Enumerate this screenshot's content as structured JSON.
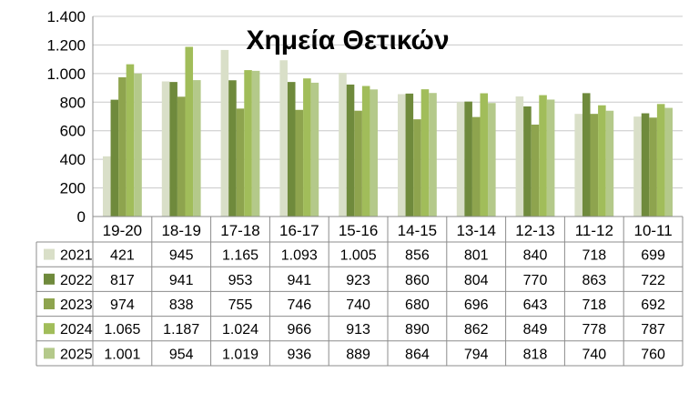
{
  "colors": {
    "2021": "#d9dfc8",
    "2022": "#6f8a3c",
    "2023": "#8ea44e",
    "2024": "#a1bd5a",
    "2025": "#b4c98a"
  },
  "chart_data": {
    "type": "bar",
    "title": "Χημεία Θετικών",
    "categories": [
      "19-20",
      "18-19",
      "17-18",
      "16-17",
      "15-16",
      "14-15",
      "13-14",
      "12-13",
      "11-12",
      "10-11"
    ],
    "ylim": [
      0,
      1400
    ],
    "yticks": [
      {
        "value": 0,
        "label": "0"
      },
      {
        "value": 200,
        "label": "200"
      },
      {
        "value": 400,
        "label": "400"
      },
      {
        "value": 600,
        "label": "600"
      },
      {
        "value": 800,
        "label": "800"
      },
      {
        "value": 1000,
        "label": "1.000"
      },
      {
        "value": 1200,
        "label": "1.200"
      },
      {
        "value": 1400,
        "label": "1.400"
      }
    ],
    "grid": true,
    "legend": "data-table-left",
    "series": [
      {
        "name": "2021",
        "values": [
          421,
          945,
          1165,
          1093,
          1005,
          856,
          801,
          840,
          718,
          699
        ],
        "labels": [
          "421",
          "945",
          "1.165",
          "1.093",
          "1.005",
          "856",
          "801",
          "840",
          "718",
          "699"
        ]
      },
      {
        "name": "2022",
        "values": [
          817,
          941,
          953,
          941,
          923,
          860,
          804,
          770,
          863,
          722
        ],
        "labels": [
          "817",
          "941",
          "953",
          "941",
          "923",
          "860",
          "804",
          "770",
          "863",
          "722"
        ]
      },
      {
        "name": "2023",
        "values": [
          974,
          838,
          755,
          746,
          740,
          680,
          696,
          643,
          718,
          692
        ],
        "labels": [
          "974",
          "838",
          "755",
          "746",
          "740",
          "680",
          "696",
          "643",
          "718",
          "692"
        ]
      },
      {
        "name": "2024",
        "values": [
          1065,
          1187,
          1024,
          966,
          913,
          890,
          862,
          849,
          778,
          787
        ],
        "labels": [
          "1.065",
          "1.187",
          "1.024",
          "966",
          "913",
          "890",
          "862",
          "849",
          "778",
          "787"
        ]
      },
      {
        "name": "2025",
        "values": [
          1001,
          954,
          1019,
          936,
          889,
          864,
          794,
          818,
          740,
          760
        ],
        "labels": [
          "1.001",
          "954",
          "1.019",
          "936",
          "889",
          "864",
          "794",
          "818",
          "740",
          "760"
        ]
      }
    ]
  }
}
